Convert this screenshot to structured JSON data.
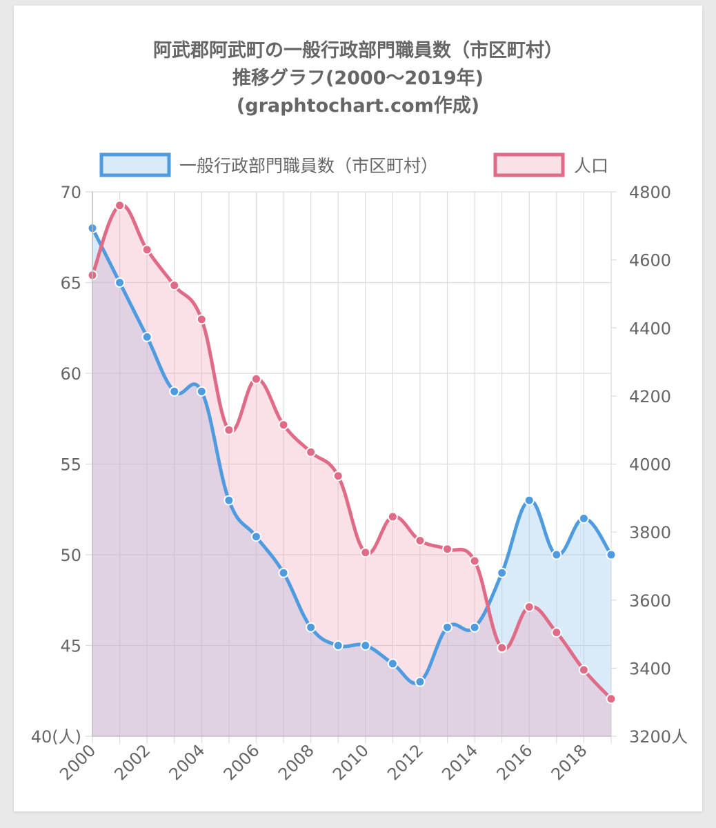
{
  "chart_data": {
    "type": "line",
    "title_lines": [
      "阿武郡阿武町の一般行政部門職員数（市区町村）",
      "推移グラフ(2000〜2019年)",
      "(graphtochart.com作成)"
    ],
    "x": [
      2000,
      2001,
      2002,
      2003,
      2004,
      2005,
      2006,
      2007,
      2008,
      2009,
      2010,
      2011,
      2012,
      2013,
      2014,
      2015,
      2016,
      2017,
      2018,
      2019
    ],
    "x_tick_labels": [
      "2000",
      "2002",
      "2004",
      "2006",
      "2008",
      "2010",
      "2012",
      "2014",
      "2016",
      "2018"
    ],
    "series": [
      {
        "name": "一般行政部門職員数（市区町村）",
        "axis": "left",
        "color": "#4e9be0",
        "fill": "rgba(160,205,240,0.4)",
        "values": [
          68,
          65,
          62,
          59,
          59,
          53,
          51,
          49,
          46,
          45,
          45,
          44,
          43,
          46,
          46,
          49,
          53,
          50,
          52,
          50
        ]
      },
      {
        "name": "人口",
        "axis": "right",
        "color": "#e06b86",
        "fill": "rgba(238,160,180,0.32)",
        "values": [
          4555,
          4760,
          4630,
          4525,
          4425,
          4100,
          4250,
          4115,
          4035,
          3965,
          3740,
          3845,
          3775,
          3750,
          3715,
          3460,
          3580,
          3505,
          3395,
          3310
        ]
      }
    ],
    "left_axis": {
      "ylim": [
        40,
        70
      ],
      "ticks": [
        "40(人)",
        "45",
        "50",
        "55",
        "60",
        "65",
        "70"
      ]
    },
    "right_axis": {
      "ylim": [
        3200,
        4800
      ],
      "ticks": [
        "3200人",
        "3400",
        "3600",
        "3800",
        "4000",
        "4200",
        "4400",
        "4600",
        "4800"
      ]
    },
    "grid": true,
    "legend_position": "top"
  }
}
